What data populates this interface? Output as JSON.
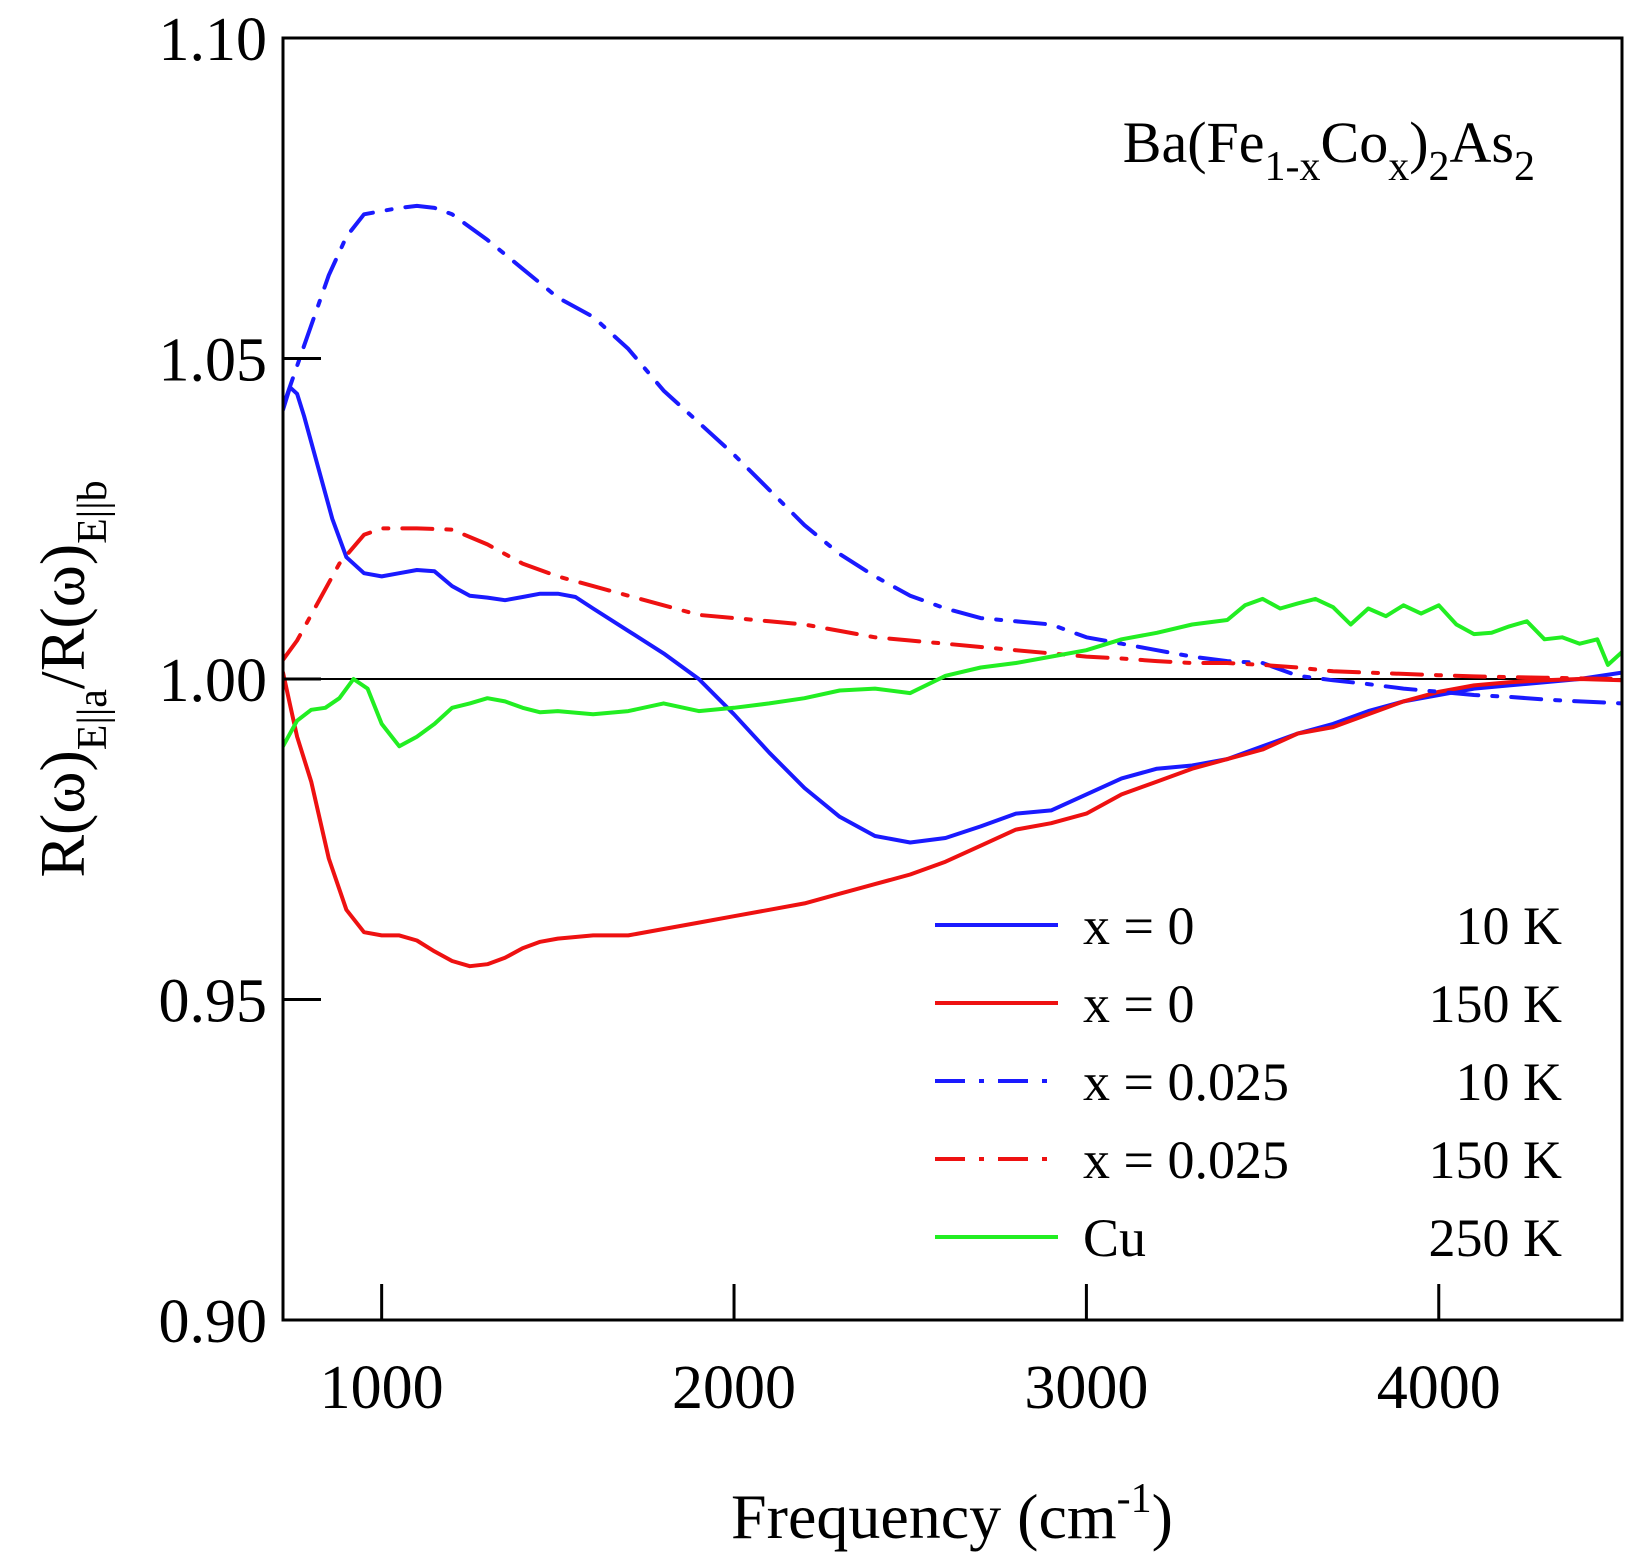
{
  "chart_data": {
    "type": "line",
    "annotation": {
      "parts": [
        {
          "text": "Ba(Fe",
          "shift": "none"
        },
        {
          "text": "1-x",
          "shift": "sub"
        },
        {
          "text": "Co",
          "shift": "none"
        },
        {
          "text": "x",
          "shift": "sub"
        },
        {
          "text": ")",
          "shift": "none"
        },
        {
          "text": "2",
          "shift": "sub"
        },
        {
          "text": "As",
          "shift": "none"
        },
        {
          "text": "2",
          "shift": "sub"
        }
      ]
    },
    "xlabel": {
      "main": "Frequency (cm",
      "sup": "-1",
      "close": ")"
    },
    "ylabel": {
      "parts": [
        {
          "text": "R(ω)",
          "shift": "none"
        },
        {
          "text": "E||a",
          "shift": "sub"
        },
        {
          "text": "/R(ω)",
          "shift": "none"
        },
        {
          "text": "E||b",
          "shift": "sub"
        }
      ]
    },
    "xlim": [
      720,
      4520
    ],
    "ylim": [
      0.9,
      1.1
    ],
    "x_ticks": [
      1000,
      2000,
      3000,
      4000
    ],
    "x_tick_labels": [
      "1000",
      "2000",
      "3000",
      "4000"
    ],
    "y_ticks": [
      0.9,
      0.95,
      1.0,
      1.05,
      1.1
    ],
    "y_tick_labels": [
      "0.90",
      "0.95",
      "1.00",
      "1.05",
      "1.10"
    ],
    "reference_line": 1.0,
    "legend_position": "bottom-right",
    "series": [
      {
        "legend_label": "x = 0",
        "temperature": "10 K",
        "color": "#1a1aff",
        "dash": "solid",
        "points": [
          [
            720,
            1.042
          ],
          [
            740,
            1.0455
          ],
          [
            760,
            1.0445
          ],
          [
            780,
            1.041
          ],
          [
            820,
            1.033
          ],
          [
            860,
            1.025
          ],
          [
            900,
            1.019
          ],
          [
            950,
            1.0165
          ],
          [
            1000,
            1.016
          ],
          [
            1050,
            1.0165
          ],
          [
            1100,
            1.017
          ],
          [
            1150,
            1.0168
          ],
          [
            1200,
            1.0145
          ],
          [
            1250,
            1.013
          ],
          [
            1300,
            1.0127
          ],
          [
            1350,
            1.0123
          ],
          [
            1400,
            1.0128
          ],
          [
            1450,
            1.0133
          ],
          [
            1500,
            1.0133
          ],
          [
            1550,
            1.0128
          ],
          [
            1600,
            1.011
          ],
          [
            1700,
            1.0075
          ],
          [
            1800,
            1.004
          ],
          [
            1900,
            1.0
          ],
          [
            2000,
            0.9945
          ],
          [
            2100,
            0.9885
          ],
          [
            2200,
            0.983
          ],
          [
            2300,
            0.9785
          ],
          [
            2400,
            0.9755
          ],
          [
            2500,
            0.9745
          ],
          [
            2600,
            0.9752
          ],
          [
            2700,
            0.977
          ],
          [
            2800,
            0.979
          ],
          [
            2900,
            0.9795
          ],
          [
            3000,
            0.982
          ],
          [
            3100,
            0.9845
          ],
          [
            3200,
            0.986
          ],
          [
            3300,
            0.9865
          ],
          [
            3400,
            0.9875
          ],
          [
            3500,
            0.9895
          ],
          [
            3600,
            0.9915
          ],
          [
            3700,
            0.993
          ],
          [
            3800,
            0.995
          ],
          [
            3900,
            0.9965
          ],
          [
            4000,
            0.9975
          ],
          [
            4100,
            0.9985
          ],
          [
            4200,
            0.999
          ],
          [
            4300,
            0.9995
          ],
          [
            4400,
            1.0
          ],
          [
            4520,
            1.001
          ]
        ]
      },
      {
        "legend_label": "x = 0",
        "temperature": "150 K",
        "color": "#ee1111",
        "dash": "solid",
        "points": [
          [
            720,
            1.001
          ],
          [
            740,
            0.996
          ],
          [
            760,
            0.991
          ],
          [
            800,
            0.984
          ],
          [
            850,
            0.972
          ],
          [
            900,
            0.964
          ],
          [
            950,
            0.9605
          ],
          [
            1000,
            0.96
          ],
          [
            1050,
            0.96
          ],
          [
            1100,
            0.9592
          ],
          [
            1150,
            0.9575
          ],
          [
            1200,
            0.956
          ],
          [
            1250,
            0.9552
          ],
          [
            1300,
            0.9555
          ],
          [
            1350,
            0.9565
          ],
          [
            1400,
            0.958
          ],
          [
            1450,
            0.959
          ],
          [
            1500,
            0.9595
          ],
          [
            1600,
            0.96
          ],
          [
            1700,
            0.96
          ],
          [
            1800,
            0.961
          ],
          [
            1900,
            0.962
          ],
          [
            2000,
            0.963
          ],
          [
            2100,
            0.964
          ],
          [
            2200,
            0.965
          ],
          [
            2300,
            0.9665
          ],
          [
            2400,
            0.968
          ],
          [
            2500,
            0.9695
          ],
          [
            2600,
            0.9715
          ],
          [
            2700,
            0.974
          ],
          [
            2800,
            0.9765
          ],
          [
            2900,
            0.9775
          ],
          [
            3000,
            0.979
          ],
          [
            3100,
            0.982
          ],
          [
            3200,
            0.984
          ],
          [
            3300,
            0.986
          ],
          [
            3400,
            0.9875
          ],
          [
            3500,
            0.989
          ],
          [
            3600,
            0.9915
          ],
          [
            3700,
            0.9925
          ],
          [
            3800,
            0.9945
          ],
          [
            3900,
            0.9965
          ],
          [
            4000,
            0.998
          ],
          [
            4100,
            0.999
          ],
          [
            4200,
            0.9995
          ],
          [
            4300,
            0.9998
          ],
          [
            4400,
            1.0
          ],
          [
            4520,
            0.9998
          ]
        ]
      },
      {
        "legend_label": "x = 0.025",
        "temperature": "10 K",
        "color": "#1a1aff",
        "dash": "dashdot",
        "points": [
          [
            720,
            1.0425
          ],
          [
            780,
            1.052
          ],
          [
            850,
            1.063
          ],
          [
            900,
            1.069
          ],
          [
            950,
            1.0725
          ],
          [
            1000,
            1.073
          ],
          [
            1050,
            1.0735
          ],
          [
            1100,
            1.0738
          ],
          [
            1150,
            1.0735
          ],
          [
            1200,
            1.0725
          ],
          [
            1300,
            1.0685
          ],
          [
            1400,
            1.064
          ],
          [
            1500,
            1.0595
          ],
          [
            1600,
            1.0565
          ],
          [
            1700,
            1.0515
          ],
          [
            1800,
            1.045
          ],
          [
            1900,
            1.04
          ],
          [
            2000,
            1.035
          ],
          [
            2100,
            1.0295
          ],
          [
            2200,
            1.024
          ],
          [
            2300,
            1.0195
          ],
          [
            2400,
            1.016
          ],
          [
            2500,
            1.013
          ],
          [
            2600,
            1.011
          ],
          [
            2700,
            1.0095
          ],
          [
            2800,
            1.009
          ],
          [
            2900,
            1.0085
          ],
          [
            3000,
            1.0065
          ],
          [
            3100,
            1.0055
          ],
          [
            3200,
            1.0045
          ],
          [
            3300,
            1.0035
          ],
          [
            3400,
            1.0028
          ],
          [
            3500,
            1.0025
          ],
          [
            3600,
            1.0005
          ],
          [
            3700,
            0.9998
          ],
          [
            3800,
            0.9992
          ],
          [
            3900,
            0.9985
          ],
          [
            4000,
            0.998
          ],
          [
            4100,
            0.9975
          ],
          [
            4200,
            0.9972
          ],
          [
            4300,
            0.9968
          ],
          [
            4400,
            0.9965
          ],
          [
            4520,
            0.9962
          ]
        ]
      },
      {
        "legend_label": "x = 0.025",
        "temperature": "150 K",
        "color": "#ee1111",
        "dash": "dashdot",
        "points": [
          [
            720,
            1.003
          ],
          [
            760,
            1.006
          ],
          [
            820,
            1.012
          ],
          [
            880,
            1.018
          ],
          [
            950,
            1.0225
          ],
          [
            1000,
            1.0235
          ],
          [
            1100,
            1.0235
          ],
          [
            1200,
            1.0233
          ],
          [
            1300,
            1.021
          ],
          [
            1400,
            1.018
          ],
          [
            1500,
            1.016
          ],
          [
            1600,
            1.0145
          ],
          [
            1700,
            1.013
          ],
          [
            1800,
            1.0115
          ],
          [
            1900,
            1.01
          ],
          [
            2000,
            1.0095
          ],
          [
            2100,
            1.009
          ],
          [
            2200,
            1.0085
          ],
          [
            2300,
            1.0075
          ],
          [
            2400,
            1.0065
          ],
          [
            2500,
            1.006
          ],
          [
            2600,
            1.0055
          ],
          [
            2700,
            1.005
          ],
          [
            2800,
            1.0045
          ],
          [
            2900,
            1.004
          ],
          [
            3000,
            1.0035
          ],
          [
            3100,
            1.0032
          ],
          [
            3200,
            1.0028
          ],
          [
            3300,
            1.0025
          ],
          [
            3400,
            1.0025
          ],
          [
            3500,
            1.0022
          ],
          [
            3600,
            1.0018
          ],
          [
            3700,
            1.0012
          ],
          [
            3800,
            1.001
          ],
          [
            3900,
            1.0008
          ],
          [
            4000,
            1.0006
          ],
          [
            4100,
            1.0004
          ],
          [
            4200,
            1.0003
          ],
          [
            4300,
            1.0002
          ],
          [
            4400,
            1.0001
          ],
          [
            4520,
            1.0
          ]
        ]
      },
      {
        "legend_label": "Cu",
        "temperature": "250 K",
        "color": "#22ee22",
        "dash": "solid",
        "points": [
          [
            720,
            0.9895
          ],
          [
            760,
            0.9935
          ],
          [
            800,
            0.9952
          ],
          [
            840,
            0.9955
          ],
          [
            880,
            0.997
          ],
          [
            920,
            1.0
          ],
          [
            960,
            0.9985
          ],
          [
            1000,
            0.993
          ],
          [
            1050,
            0.9895
          ],
          [
            1100,
            0.991
          ],
          [
            1150,
            0.993
          ],
          [
            1200,
            0.9955
          ],
          [
            1250,
            0.9962
          ],
          [
            1300,
            0.997
          ],
          [
            1350,
            0.9965
          ],
          [
            1400,
            0.9955
          ],
          [
            1450,
            0.9948
          ],
          [
            1500,
            0.995
          ],
          [
            1600,
            0.9945
          ],
          [
            1700,
            0.995
          ],
          [
            1800,
            0.9962
          ],
          [
            1900,
            0.995
          ],
          [
            2000,
            0.9955
          ],
          [
            2100,
            0.9962
          ],
          [
            2200,
            0.997
          ],
          [
            2300,
            0.9982
          ],
          [
            2400,
            0.9985
          ],
          [
            2500,
            0.9978
          ],
          [
            2600,
            1.0005
          ],
          [
            2700,
            1.0018
          ],
          [
            2800,
            1.0025
          ],
          [
            2900,
            1.0035
          ],
          [
            3000,
            1.0045
          ],
          [
            3100,
            1.0062
          ],
          [
            3200,
            1.0072
          ],
          [
            3300,
            1.0085
          ],
          [
            3400,
            1.0092
          ],
          [
            3450,
            1.0115
          ],
          [
            3500,
            1.0125
          ],
          [
            3550,
            1.011
          ],
          [
            3600,
            1.0118
          ],
          [
            3650,
            1.0125
          ],
          [
            3700,
            1.0112
          ],
          [
            3750,
            1.0085
          ],
          [
            3800,
            1.011
          ],
          [
            3850,
            1.0098
          ],
          [
            3900,
            1.0115
          ],
          [
            3950,
            1.0102
          ],
          [
            4000,
            1.0115
          ],
          [
            4050,
            1.0085
          ],
          [
            4100,
            1.007
          ],
          [
            4150,
            1.0072
          ],
          [
            4200,
            1.0082
          ],
          [
            4250,
            1.009
          ],
          [
            4300,
            1.0062
          ],
          [
            4350,
            1.0065
          ],
          [
            4400,
            1.0055
          ],
          [
            4450,
            1.0062
          ],
          [
            4480,
            1.0022
          ],
          [
            4520,
            1.0042
          ]
        ]
      }
    ]
  }
}
